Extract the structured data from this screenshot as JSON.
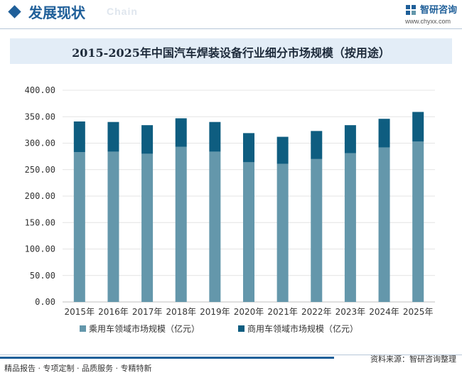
{
  "header": {
    "title": "发展现状",
    "subtitle_en": "Chain",
    "brand_name": "智研咨询",
    "brand_url": "www.chyxx.com"
  },
  "footer": {
    "left": "精品报告 · 专项定制 · 品质服务 · 专精特新",
    "source": "资料来源：智研咨询整理"
  },
  "colors": {
    "passenger": "#6497ab",
    "commercial": "#0e5d80",
    "brand": "#1f5f99"
  },
  "chart_data": {
    "type": "bar",
    "stacked": true,
    "title": "2015-2025年中国汽车焊装设备行业细分市场规模（按用途）",
    "categories": [
      "2015年",
      "2016年",
      "2017年",
      "2018年",
      "2019年",
      "2020年",
      "2021年",
      "2022年",
      "2023年",
      "2024年",
      "2025年"
    ],
    "series": [
      {
        "name": "乘用车领域市场规模（亿元）",
        "values": [
          283,
          284,
          280,
          293,
          284,
          264,
          261,
          270,
          281,
          292,
          303
        ]
      },
      {
        "name": "商用车领域市场规模（亿元）",
        "values": [
          58,
          56,
          54,
          54,
          56,
          55,
          51,
          53,
          53,
          54,
          56
        ]
      }
    ],
    "yticks": [
      "0.00",
      "50.00",
      "100.00",
      "150.00",
      "200.00",
      "250.00",
      "300.00",
      "350.00",
      "400.00"
    ],
    "ylim": [
      0,
      400
    ],
    "grid": true,
    "legend": "bottom"
  }
}
